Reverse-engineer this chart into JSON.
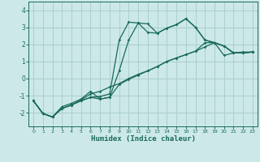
{
  "xlabel": "Humidex (Indice chaleur)",
  "bg_color": "#cce8e8",
  "grid_color": "#aacfcf",
  "line_color": "#1a6b5a",
  "x_ticks": [
    0,
    1,
    2,
    3,
    4,
    5,
    6,
    7,
    8,
    9,
    10,
    11,
    12,
    13,
    14,
    15,
    16,
    17,
    18,
    19,
    20,
    21,
    22,
    23
  ],
  "y_ticks": [
    -2,
    -1,
    0,
    1,
    2,
    3,
    4
  ],
  "xlim": [
    -0.5,
    23.5
  ],
  "ylim": [
    -2.8,
    4.5
  ],
  "series": [
    {
      "x": [
        0,
        1,
        2,
        3,
        4,
        5,
        6,
        7,
        8,
        9,
        10,
        11,
        12,
        13,
        14,
        15,
        16,
        17,
        18,
        19,
        20,
        21,
        22,
        23
      ],
      "y": [
        -1.3,
        -2.05,
        -2.25,
        -1.75,
        -1.55,
        -1.25,
        -0.9,
        -0.75,
        -0.5,
        -0.3,
        0.0,
        0.25,
        0.45,
        0.7,
        1.0,
        1.2,
        1.4,
        1.6,
        1.85,
        2.1,
        1.35,
        1.5,
        1.55,
        1.55
      ]
    },
    {
      "x": [
        0,
        1,
        2,
        3,
        4,
        5,
        6,
        7,
        8,
        9,
        10,
        11,
        12,
        13,
        14,
        15,
        16,
        17,
        18,
        19,
        20,
        21,
        22,
        23
      ],
      "y": [
        -1.3,
        -2.05,
        -2.25,
        -1.75,
        -1.55,
        -1.3,
        -1.1,
        -1.05,
        -0.9,
        2.25,
        3.3,
        3.25,
        2.7,
        2.65,
        2.95,
        3.15,
        3.5,
        3.0,
        2.25,
        2.1,
        1.9,
        1.5,
        1.5,
        1.55
      ]
    },
    {
      "x": [
        0,
        1,
        2,
        3,
        4,
        5,
        6,
        7,
        8,
        9,
        10,
        11,
        12,
        13,
        14,
        15,
        16,
        17,
        18,
        19,
        20,
        21,
        22,
        23
      ],
      "y": [
        -1.3,
        -2.05,
        -2.25,
        -1.75,
        -1.55,
        -1.3,
        -1.1,
        -1.2,
        -1.1,
        0.45,
        2.25,
        3.25,
        3.2,
        2.65,
        2.95,
        3.15,
        3.5,
        3.0,
        2.25,
        2.1,
        1.9,
        1.5,
        1.5,
        1.55
      ]
    },
    {
      "x": [
        0,
        1,
        2,
        3,
        4,
        5,
        6,
        7,
        8,
        9,
        10,
        11,
        12,
        13,
        14,
        15,
        16,
        17,
        18,
        19,
        20,
        21,
        22,
        23
      ],
      "y": [
        -1.3,
        -2.05,
        -2.25,
        -1.65,
        -1.45,
        -1.2,
        -0.75,
        -1.2,
        -1.1,
        -0.35,
        -0.05,
        0.2,
        0.45,
        0.7,
        1.0,
        1.2,
        1.4,
        1.6,
        2.1,
        2.1,
        1.9,
        1.5,
        1.5,
        1.55
      ]
    }
  ]
}
